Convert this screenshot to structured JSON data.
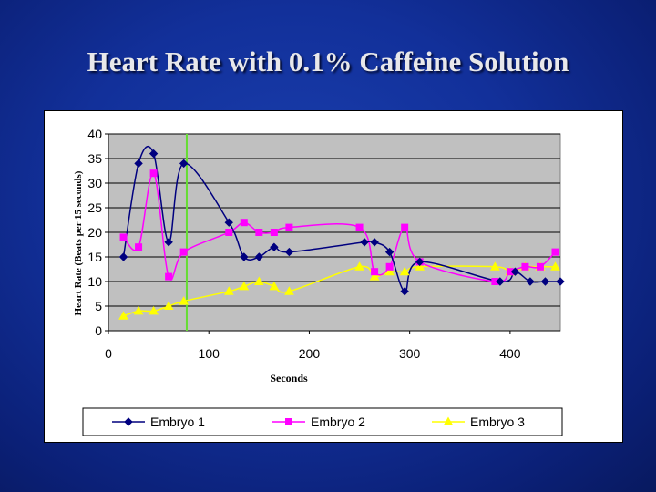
{
  "slide": {
    "title": "Heart Rate with 0.1% Caffeine Solution",
    "background_color": "#12309a"
  },
  "chart_data": {
    "type": "line",
    "title": "",
    "xlabel": "Seconds",
    "ylabel": "Heart Rate (Beats per 15 seconds)",
    "xlim": [
      0,
      450
    ],
    "ylim": [
      0,
      40
    ],
    "x_ticks": [
      "0",
      "100",
      "200",
      "300",
      "400"
    ],
    "y_ticks": [
      "0",
      "5",
      "10",
      "15",
      "20",
      "25",
      "30",
      "35",
      "40"
    ],
    "grid": true,
    "plot_background": "#c0c0c0",
    "legend_position": "bottom",
    "vertical_marker_line": {
      "x": 78,
      "color": "#66dd33"
    },
    "series": [
      {
        "name": "Embryo 1",
        "color": "#00007f",
        "marker": "diamond",
        "points": [
          [
            15,
            15
          ],
          [
            30,
            34
          ],
          [
            45,
            36
          ],
          [
            60,
            18
          ],
          [
            75,
            34
          ],
          [
            120,
            22
          ],
          [
            135,
            15
          ],
          [
            150,
            15
          ],
          [
            165,
            17
          ],
          [
            180,
            16
          ],
          [
            255,
            18
          ],
          [
            265,
            18
          ],
          [
            280,
            16
          ],
          [
            295,
            8
          ],
          [
            310,
            14
          ],
          [
            390,
            10
          ],
          [
            405,
            12
          ],
          [
            420,
            10
          ],
          [
            435,
            10
          ],
          [
            450,
            10
          ]
        ]
      },
      {
        "name": "Embryo 2",
        "color": "#ff00ff",
        "marker": "square",
        "points": [
          [
            15,
            19
          ],
          [
            30,
            17
          ],
          [
            45,
            32
          ],
          [
            60,
            11
          ],
          [
            75,
            16
          ],
          [
            120,
            20
          ],
          [
            135,
            22
          ],
          [
            150,
            20
          ],
          [
            165,
            20
          ],
          [
            180,
            21
          ],
          [
            250,
            21
          ],
          [
            265,
            12
          ],
          [
            280,
            13
          ],
          [
            295,
            21
          ],
          [
            310,
            14
          ],
          [
            385,
            10
          ],
          [
            400,
            12
          ],
          [
            415,
            13
          ],
          [
            430,
            13
          ],
          [
            445,
            16
          ]
        ]
      },
      {
        "name": "Embryo 3",
        "color": "#ffff00",
        "marker": "triangle",
        "points": [
          [
            15,
            3
          ],
          [
            30,
            4
          ],
          [
            45,
            4
          ],
          [
            60,
            5
          ],
          [
            75,
            6
          ],
          [
            120,
            8
          ],
          [
            135,
            9
          ],
          [
            150,
            10
          ],
          [
            165,
            9
          ],
          [
            180,
            8
          ],
          [
            250,
            13
          ],
          [
            265,
            11
          ],
          [
            280,
            12
          ],
          [
            295,
            12
          ],
          [
            310,
            13
          ],
          [
            385,
            13
          ],
          [
            400,
            12
          ],
          [
            415,
            13
          ],
          [
            430,
            13
          ],
          [
            445,
            13
          ]
        ]
      }
    ]
  }
}
